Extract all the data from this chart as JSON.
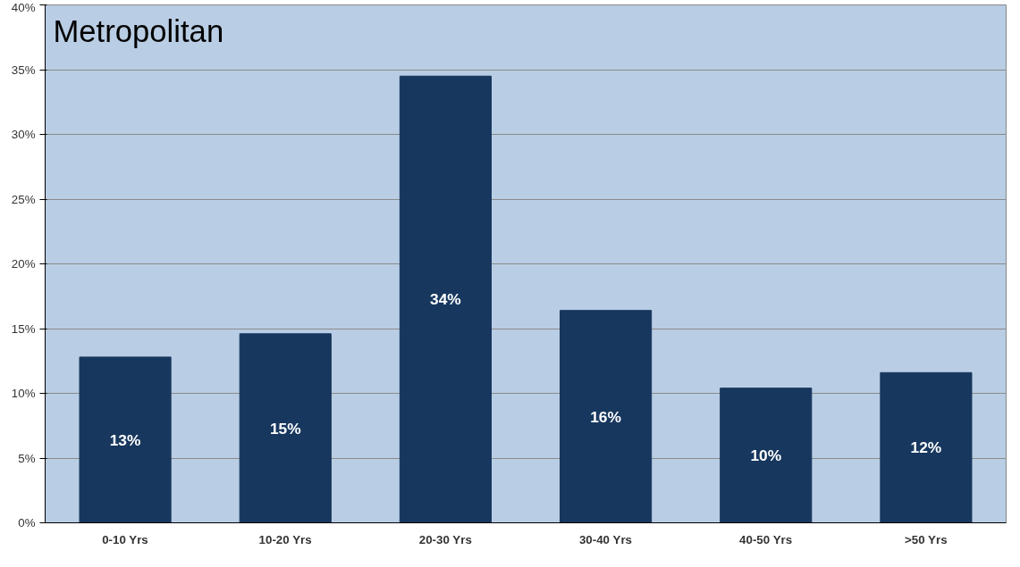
{
  "chart_data": {
    "type": "bar",
    "title": "Metropolitan",
    "categories": [
      "0-10 Yrs",
      "10-20 Yrs",
      "20-30 Yrs",
      "30-40 Yrs",
      "40-50 Yrs",
      ">50 Yrs"
    ],
    "values": [
      12.8,
      14.6,
      34.5,
      16.4,
      10.4,
      11.6
    ],
    "value_labels": [
      "13%",
      "15%",
      "34%",
      "16%",
      "10%",
      "12%"
    ],
    "color": "#17375e",
    "ylim": [
      0,
      40
    ],
    "yticks": [
      {
        "value": 0,
        "label": "0%"
      },
      {
        "value": 5,
        "label": "5%"
      },
      {
        "value": 10,
        "label": "10%"
      },
      {
        "value": 15,
        "label": "15%"
      },
      {
        "value": 20,
        "label": "20%"
      },
      {
        "value": 25,
        "label": "25%"
      },
      {
        "value": 30,
        "label": "30%"
      },
      {
        "value": 35,
        "label": "35%"
      },
      {
        "value": 40,
        "label": "40%"
      }
    ],
    "grid": "y"
  }
}
